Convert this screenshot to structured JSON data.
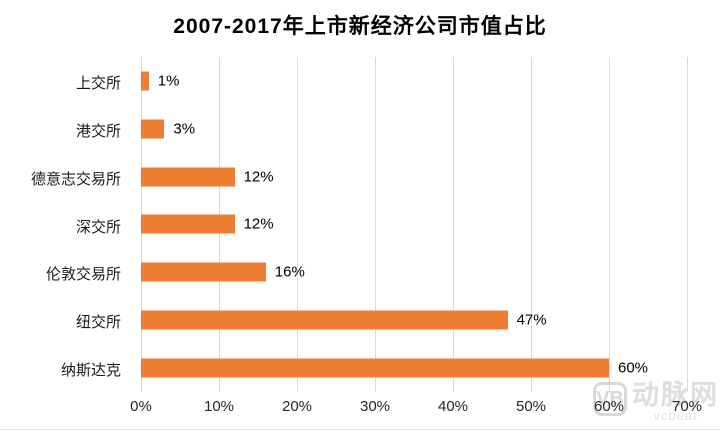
{
  "chart_data": {
    "type": "bar",
    "orientation": "horizontal",
    "title": "2007-2017年上市新经济公司市值占比",
    "categories": [
      "上交所",
      "港交所",
      "德意志交易所",
      "深交所",
      "伦敦交易所",
      "纽交所",
      "纳斯达克"
    ],
    "values": [
      1,
      3,
      12,
      12,
      16,
      47,
      60
    ],
    "data_labels": [
      "1%",
      "3%",
      "12%",
      "12%",
      "16%",
      "47%",
      "60%"
    ],
    "x_ticks": [
      "0%",
      "10%",
      "20%",
      "30%",
      "40%",
      "50%",
      "60%",
      "70%"
    ],
    "x_tick_values": [
      0,
      10,
      20,
      30,
      40,
      50,
      60,
      70
    ],
    "xlim": [
      0,
      70
    ],
    "xlabel": "",
    "ylabel": "",
    "grid": "vertical",
    "legend": "none",
    "bar_color": "#ED7D31",
    "gridline_color": "#D9D9D9",
    "label_color": "#000000"
  },
  "watermark": {
    "logo_monogram": "VB",
    "brand": "动脉网",
    "subtext": "vcbeat",
    "color": "#c3c3c3"
  }
}
